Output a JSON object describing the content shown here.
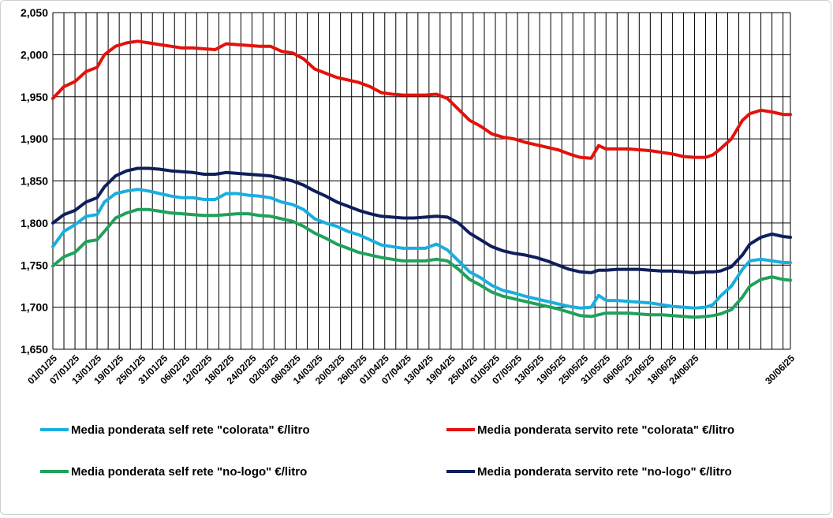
{
  "chart_data": {
    "type": "line",
    "title": "",
    "xlabel": "",
    "ylabel": "",
    "ylim": [
      1.65,
      2.05
    ],
    "y_ticks": [
      "1,650",
      "1,700",
      "1,750",
      "1,800",
      "1,850",
      "1,900",
      "1,950",
      "2,000",
      "2,050"
    ],
    "x_tick_labels": [
      "01/01/25",
      "07/01/25",
      "13/01/25",
      "19/01/25",
      "25/01/25",
      "31/01/25",
      "06/02/25",
      "12/02/25",
      "18/02/25",
      "24/02/25",
      "02/03/25",
      "08/03/25",
      "14/03/25",
      "20/03/25",
      "26/03/25",
      "01/04/25",
      "07/04/25",
      "13/04/25",
      "19/04/25",
      "25/04/25",
      "01/05/25",
      "07/05/25",
      "13/05/25",
      "19/05/25",
      "25/05/25",
      "31/05/25",
      "06/06/25",
      "12/06/25",
      "18/06/25",
      "24/06/25",
      "30/06/25"
    ],
    "grid": "vertical-and-horizontal",
    "legend_position": "bottom",
    "series": [
      {
        "name": "Media ponderata self rete \"colorata\" €/litro",
        "color": "#1AAEE0",
        "points": [
          [
            0,
            1.772
          ],
          [
            3,
            1.79
          ],
          [
            6,
            1.798
          ],
          [
            9,
            1.808
          ],
          [
            12,
            1.81
          ],
          [
            14,
            1.825
          ],
          [
            17,
            1.835
          ],
          [
            20,
            1.838
          ],
          [
            23,
            1.84
          ],
          [
            26,
            1.838
          ],
          [
            29,
            1.835
          ],
          [
            32,
            1.832
          ],
          [
            35,
            1.83
          ],
          [
            38,
            1.83
          ],
          [
            41,
            1.828
          ],
          [
            44,
            1.828
          ],
          [
            47,
            1.835
          ],
          [
            50,
            1.835
          ],
          [
            53,
            1.833
          ],
          [
            56,
            1.832
          ],
          [
            59,
            1.83
          ],
          [
            62,
            1.825
          ],
          [
            65,
            1.822
          ],
          [
            68,
            1.816
          ],
          [
            71,
            1.805
          ],
          [
            74,
            1.8
          ],
          [
            77,
            1.796
          ],
          [
            80,
            1.79
          ],
          [
            83,
            1.786
          ],
          [
            86,
            1.78
          ],
          [
            89,
            1.774
          ],
          [
            92,
            1.772
          ],
          [
            95,
            1.77
          ],
          [
            98,
            1.77
          ],
          [
            101,
            1.77
          ],
          [
            104,
            1.775
          ],
          [
            107,
            1.768
          ],
          [
            110,
            1.755
          ],
          [
            113,
            1.742
          ],
          [
            116,
            1.735
          ],
          [
            119,
            1.726
          ],
          [
            122,
            1.72
          ],
          [
            125,
            1.717
          ],
          [
            128,
            1.713
          ],
          [
            131,
            1.71
          ],
          [
            134,
            1.707
          ],
          [
            137,
            1.704
          ],
          [
            140,
            1.701
          ],
          [
            143,
            1.699
          ],
          [
            146,
            1.7
          ],
          [
            148,
            1.714
          ],
          [
            150,
            1.708
          ],
          [
            153,
            1.708
          ],
          [
            156,
            1.707
          ],
          [
            159,
            1.706
          ],
          [
            162,
            1.705
          ],
          [
            165,
            1.703
          ],
          [
            168,
            1.701
          ],
          [
            171,
            1.7
          ],
          [
            174,
            1.699
          ],
          [
            177,
            1.7
          ],
          [
            179,
            1.703
          ],
          [
            181,
            1.713
          ],
          [
            184,
            1.725
          ],
          [
            187,
            1.745
          ],
          [
            189,
            1.755
          ],
          [
            192,
            1.757
          ],
          [
            195,
            1.755
          ],
          [
            198,
            1.753
          ],
          [
            200,
            1.753
          ]
        ]
      },
      {
        "name": "Media ponderata servito rete \"colorata\" €/litro",
        "color": "#E3120B",
        "points": [
          [
            0,
            1.948
          ],
          [
            3,
            1.962
          ],
          [
            6,
            1.968
          ],
          [
            9,
            1.98
          ],
          [
            12,
            1.985
          ],
          [
            14,
            2.0
          ],
          [
            17,
            2.01
          ],
          [
            20,
            2.014
          ],
          [
            23,
            2.016
          ],
          [
            26,
            2.014
          ],
          [
            29,
            2.012
          ],
          [
            32,
            2.01
          ],
          [
            35,
            2.008
          ],
          [
            38,
            2.008
          ],
          [
            41,
            2.007
          ],
          [
            44,
            2.006
          ],
          [
            47,
            2.013
          ],
          [
            50,
            2.012
          ],
          [
            53,
            2.011
          ],
          [
            56,
            2.01
          ],
          [
            59,
            2.01
          ],
          [
            62,
            2.004
          ],
          [
            65,
            2.002
          ],
          [
            68,
            1.995
          ],
          [
            71,
            1.983
          ],
          [
            74,
            1.978
          ],
          [
            77,
            1.973
          ],
          [
            80,
            1.97
          ],
          [
            83,
            1.967
          ],
          [
            86,
            1.962
          ],
          [
            89,
            1.955
          ],
          [
            92,
            1.953
          ],
          [
            95,
            1.952
          ],
          [
            98,
            1.952
          ],
          [
            101,
            1.952
          ],
          [
            104,
            1.953
          ],
          [
            107,
            1.948
          ],
          [
            110,
            1.935
          ],
          [
            113,
            1.922
          ],
          [
            116,
            1.915
          ],
          [
            119,
            1.906
          ],
          [
            122,
            1.902
          ],
          [
            125,
            1.9
          ],
          [
            128,
            1.896
          ],
          [
            131,
            1.893
          ],
          [
            134,
            1.89
          ],
          [
            137,
            1.887
          ],
          [
            140,
            1.882
          ],
          [
            143,
            1.878
          ],
          [
            146,
            1.877
          ],
          [
            148,
            1.892
          ],
          [
            150,
            1.888
          ],
          [
            153,
            1.888
          ],
          [
            156,
            1.888
          ],
          [
            159,
            1.887
          ],
          [
            162,
            1.886
          ],
          [
            165,
            1.884
          ],
          [
            168,
            1.882
          ],
          [
            171,
            1.879
          ],
          [
            174,
            1.878
          ],
          [
            177,
            1.878
          ],
          [
            179,
            1.881
          ],
          [
            181,
            1.888
          ],
          [
            184,
            1.9
          ],
          [
            187,
            1.922
          ],
          [
            189,
            1.93
          ],
          [
            192,
            1.934
          ],
          [
            195,
            1.932
          ],
          [
            198,
            1.929
          ],
          [
            200,
            1.929
          ]
        ]
      },
      {
        "name": "Media ponderata self rete \"no-logo\" €/litro",
        "color": "#1FA25B",
        "points": [
          [
            0,
            1.749
          ],
          [
            3,
            1.76
          ],
          [
            6,
            1.765
          ],
          [
            9,
            1.778
          ],
          [
            12,
            1.78
          ],
          [
            14,
            1.79
          ],
          [
            17,
            1.806
          ],
          [
            20,
            1.812
          ],
          [
            23,
            1.816
          ],
          [
            26,
            1.816
          ],
          [
            29,
            1.814
          ],
          [
            32,
            1.812
          ],
          [
            35,
            1.811
          ],
          [
            38,
            1.81
          ],
          [
            41,
            1.809
          ],
          [
            44,
            1.809
          ],
          [
            47,
            1.81
          ],
          [
            50,
            1.811
          ],
          [
            53,
            1.811
          ],
          [
            56,
            1.809
          ],
          [
            59,
            1.808
          ],
          [
            62,
            1.805
          ],
          [
            65,
            1.802
          ],
          [
            68,
            1.796
          ],
          [
            71,
            1.788
          ],
          [
            74,
            1.782
          ],
          [
            77,
            1.775
          ],
          [
            80,
            1.77
          ],
          [
            83,
            1.765
          ],
          [
            86,
            1.762
          ],
          [
            89,
            1.759
          ],
          [
            92,
            1.757
          ],
          [
            95,
            1.755
          ],
          [
            98,
            1.755
          ],
          [
            101,
            1.755
          ],
          [
            104,
            1.757
          ],
          [
            107,
            1.755
          ],
          [
            110,
            1.745
          ],
          [
            113,
            1.733
          ],
          [
            116,
            1.726
          ],
          [
            119,
            1.718
          ],
          [
            122,
            1.713
          ],
          [
            125,
            1.71
          ],
          [
            128,
            1.707
          ],
          [
            131,
            1.704
          ],
          [
            134,
            1.701
          ],
          [
            137,
            1.698
          ],
          [
            140,
            1.694
          ],
          [
            143,
            1.69
          ],
          [
            146,
            1.689
          ],
          [
            148,
            1.691
          ],
          [
            150,
            1.693
          ],
          [
            153,
            1.693
          ],
          [
            156,
            1.693
          ],
          [
            159,
            1.692
          ],
          [
            162,
            1.691
          ],
          [
            165,
            1.691
          ],
          [
            168,
            1.69
          ],
          [
            171,
            1.689
          ],
          [
            174,
            1.688
          ],
          [
            177,
            1.689
          ],
          [
            179,
            1.69
          ],
          [
            181,
            1.692
          ],
          [
            184,
            1.697
          ],
          [
            187,
            1.712
          ],
          [
            189,
            1.725
          ],
          [
            192,
            1.733
          ],
          [
            195,
            1.736
          ],
          [
            198,
            1.733
          ],
          [
            200,
            1.732
          ]
        ]
      },
      {
        "name": "Media ponderata servito rete \"no-logo\" €/litro",
        "color": "#0E1F5B",
        "points": [
          [
            0,
            1.8
          ],
          [
            3,
            1.81
          ],
          [
            6,
            1.815
          ],
          [
            9,
            1.825
          ],
          [
            12,
            1.83
          ],
          [
            14,
            1.843
          ],
          [
            17,
            1.856
          ],
          [
            20,
            1.862
          ],
          [
            23,
            1.865
          ],
          [
            26,
            1.865
          ],
          [
            29,
            1.864
          ],
          [
            32,
            1.862
          ],
          [
            35,
            1.861
          ],
          [
            38,
            1.86
          ],
          [
            41,
            1.858
          ],
          [
            44,
            1.858
          ],
          [
            47,
            1.86
          ],
          [
            50,
            1.859
          ],
          [
            53,
            1.858
          ],
          [
            56,
            1.857
          ],
          [
            59,
            1.856
          ],
          [
            62,
            1.853
          ],
          [
            65,
            1.85
          ],
          [
            68,
            1.845
          ],
          [
            71,
            1.838
          ],
          [
            74,
            1.832
          ],
          [
            77,
            1.825
          ],
          [
            80,
            1.82
          ],
          [
            83,
            1.815
          ],
          [
            86,
            1.811
          ],
          [
            89,
            1.808
          ],
          [
            92,
            1.807
          ],
          [
            95,
            1.806
          ],
          [
            98,
            1.806
          ],
          [
            101,
            1.807
          ],
          [
            104,
            1.808
          ],
          [
            107,
            1.807
          ],
          [
            110,
            1.8
          ],
          [
            113,
            1.788
          ],
          [
            116,
            1.78
          ],
          [
            119,
            1.772
          ],
          [
            122,
            1.767
          ],
          [
            125,
            1.764
          ],
          [
            128,
            1.762
          ],
          [
            131,
            1.759
          ],
          [
            134,
            1.755
          ],
          [
            137,
            1.75
          ],
          [
            140,
            1.745
          ],
          [
            143,
            1.742
          ],
          [
            146,
            1.741
          ],
          [
            148,
            1.744
          ],
          [
            150,
            1.744
          ],
          [
            153,
            1.745
          ],
          [
            156,
            1.745
          ],
          [
            159,
            1.745
          ],
          [
            162,
            1.744
          ],
          [
            165,
            1.743
          ],
          [
            168,
            1.743
          ],
          [
            171,
            1.742
          ],
          [
            174,
            1.741
          ],
          [
            177,
            1.742
          ],
          [
            179,
            1.742
          ],
          [
            181,
            1.743
          ],
          [
            184,
            1.748
          ],
          [
            187,
            1.762
          ],
          [
            189,
            1.775
          ],
          [
            192,
            1.783
          ],
          [
            195,
            1.787
          ],
          [
            198,
            1.784
          ],
          [
            200,
            1.783
          ]
        ]
      }
    ]
  }
}
